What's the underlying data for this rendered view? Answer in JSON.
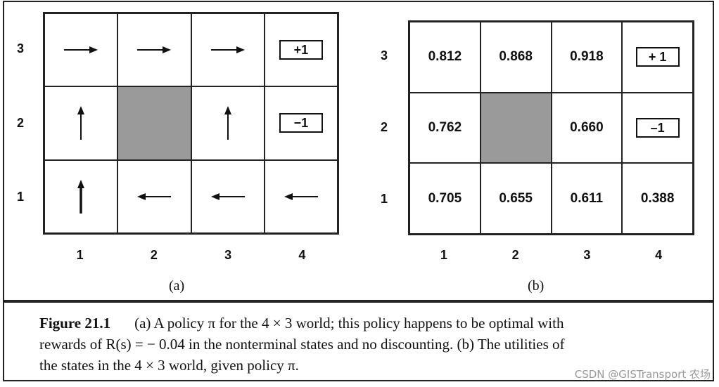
{
  "panel_a": {
    "row_labels": [
      "3",
      "2",
      "1"
    ],
    "col_labels": [
      "1",
      "2",
      "3",
      "4"
    ],
    "cells": [
      [
        "right",
        "right",
        "right",
        "+1"
      ],
      [
        "up",
        "wall",
        "up",
        "−1"
      ],
      [
        "up",
        "left",
        "left",
        "left"
      ]
    ],
    "sublabel": "(a)"
  },
  "panel_b": {
    "row_labels": [
      "3",
      "2",
      "1"
    ],
    "col_labels": [
      "1",
      "2",
      "3",
      "4"
    ],
    "cells": [
      [
        "0.812",
        "0.868",
        "0.918",
        "+ 1"
      ],
      [
        "0.762",
        "wall",
        "0.660",
        "–1"
      ],
      [
        "0.705",
        "0.655",
        "0.611",
        "0.388"
      ]
    ],
    "sublabel": "(b)"
  },
  "caption": {
    "figure_label": "Figure 21.1",
    "line1": "(a) A policy π for the 4 × 3 world; this policy happens to be optimal with",
    "line2": "rewards of R(s) = − 0.04 in the nonterminal states and no discounting. (b) The utilities of",
    "line3": "the states in the 4 × 3 world, given policy π."
  },
  "watermark": "CSDN @GISTransport 农场",
  "colors": {
    "wall": "#9a9a9a",
    "border": "#222222"
  }
}
